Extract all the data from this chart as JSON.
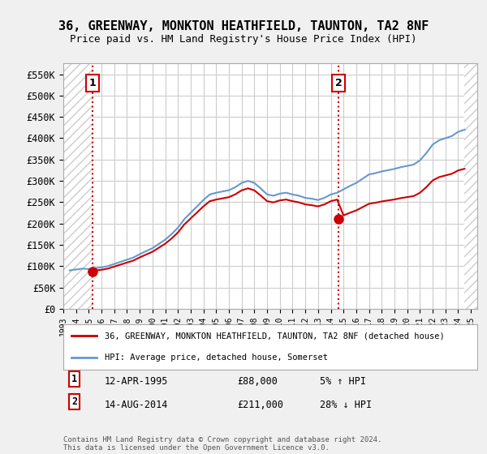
{
  "title": "36, GREENWAY, MONKTON HEATHFIELD, TAUNTON, TA2 8NF",
  "subtitle": "Price paid vs. HM Land Registry's House Price Index (HPI)",
  "ylabel": "",
  "ylim": [
    0,
    575000
  ],
  "yticks": [
    0,
    50000,
    100000,
    150000,
    200000,
    250000,
    300000,
    350000,
    400000,
    450000,
    500000,
    550000
  ],
  "ytick_labels": [
    "£0",
    "£50K",
    "£100K",
    "£150K",
    "£200K",
    "£250K",
    "£300K",
    "£350K",
    "£400K",
    "£450K",
    "£500K",
    "£550K"
  ],
  "hpi_color": "#6699cc",
  "price_color": "#cc0000",
  "sale1_date": 1995.28,
  "sale1_price": 88000,
  "sale1_label": "1",
  "sale2_date": 2014.62,
  "sale2_price": 211000,
  "sale2_label": "2",
  "legend_property": "36, GREENWAY, MONKTON HEATHFIELD, TAUNTON, TA2 8NF (detached house)",
  "legend_hpi": "HPI: Average price, detached house, Somerset",
  "annotation1": "1   12-APR-1995        £88,000        5% ↑ HPI",
  "annotation2": "2   14-AUG-2014        £211,000      28% ↓ HPI",
  "footnote": "Contains HM Land Registry data © Crown copyright and database right 2024.\nThis data is licensed under the Open Government Licence v3.0.",
  "background_color": "#f0f0f0",
  "plot_bg_color": "#ffffff",
  "hatch_color": "#cccccc",
  "grid_color": "#cccccc"
}
